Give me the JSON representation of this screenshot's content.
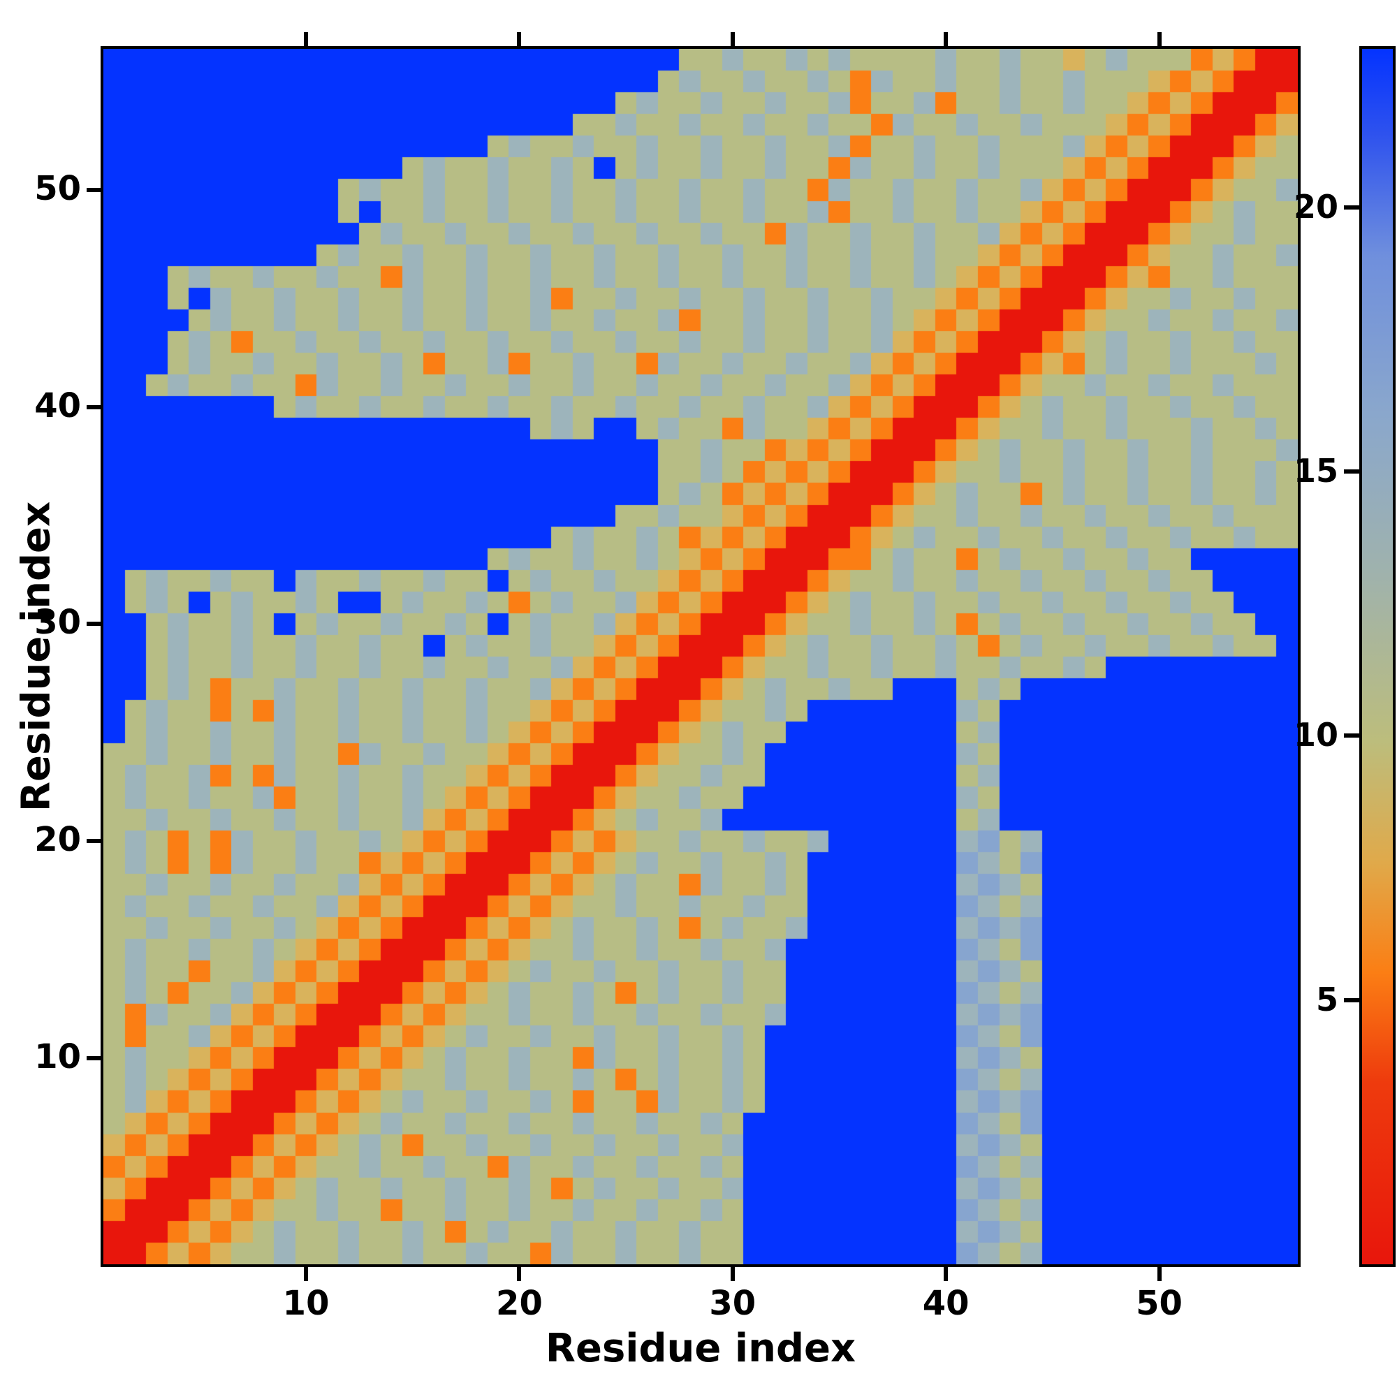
{
  "chart_data": {
    "type": "heatmap",
    "title": "",
    "xlabel": "Residue index",
    "ylabel": "Residue index",
    "n_residues": 56,
    "x_ticks": [
      10,
      20,
      30,
      40,
      50
    ],
    "y_ticks": [
      10,
      20,
      30,
      40,
      50
    ],
    "colorbar": {
      "ticks": [
        5,
        10,
        15,
        20
      ],
      "vmin": 0,
      "vmax": 23,
      "gradient_stops": [
        [
          0.0,
          "#e8160c"
        ],
        [
          0.15,
          "#ee3b0d"
        ],
        [
          0.24,
          "#fb7e14"
        ],
        [
          0.33,
          "#e0a94a"
        ],
        [
          0.43,
          "#bcbd7c"
        ],
        [
          0.57,
          "#9fb2ad"
        ],
        [
          0.7,
          "#8aa7cc"
        ],
        [
          0.83,
          "#6f8fdd"
        ],
        [
          0.93,
          "#2e52ee"
        ],
        [
          1.0,
          "#0433ff"
        ]
      ]
    },
    "encoding_values": {
      "R": 1,
      "O": 5.5,
      "o": 7,
      "t": 8.8,
      "g": 10.5,
      "s": 13.5,
      "S": 16.5,
      "b": 19,
      "B": 23
    },
    "palette": {
      "R": "#e8160c",
      "O": "#fb7e14",
      "o": "#fba03c",
      "t": "#d9b35c",
      "g": "#b7bd85",
      "s": "#9db4bb",
      "S": "#87a5cf",
      "b": "#7d9ad4",
      "B": "#0433ff"
    },
    "row_order": "top_to_bottom_residue_56_to_1",
    "rows_top_to_bottom": [
      "BBBBBBBBBBBBBBBBBBBBBBBBBBBggsggsgsggggsggsggtgsgggOtORR",
      "BBBBBBBBBBBBBBBBBBBBBBBBBBgsggsggsgOsggsggsggsgggtOtORRR",
      "BBBBBBBBBBBBBBBBBBBBBBBBgsggsggsggsOggsOggsggsggtOtORRRO",
      "BBBBBBBBBBBBBBBBBBBBBBggsggsggsggsggOsggsggsgggtOtORRROt",
      "BBBBBBBBBBBBBBBBBBgsggsggsggsggsggsOggsggsgggstOtORRROtg",
      "BBBBBBBBBBBBBBgsggsggsgBgsggsggsggOsggsggsgggtOtORRROtgg",
      "BBBBBBBBBBBgsggsggsggsggsggsggsggOsggsggsggstOtORRROtggs",
      "BBBBBBBBBBBgBggsggsggsggsggsggsggsOggsggsggtOtORRROtgsgg",
      "BBBBBBBBBBBBgsggsggsggsggsggsggOsggsggsggstOtORRROtggsgg",
      "BBBBBBBBBBgsggsggsggsggsggsggsggsggsggsggtOtORRROtggsggs",
      "BBBgsggsggsggOsggsggsggsggsggsggsggsggsgtOtORRROtOggsggg",
      "BBBgBsggsggsggsggsggsOggsggsggsggsggsggtOtORRROtggsggsgg",
      "BBBBgsggsggsggsggsggsggsggsOggsggsggsgtOtORRROtggsggsggs",
      "BBBgsgOggsggsggsggsggsggsggsggsggsggstOtORRROtgsggsggsgg",
      "BBBgsggsggsggsgOggsOggsggOsggsggsggstOtORRROtOgsggsgggsg",
      "BBgsggsggOsggsggsggsggsggsggsggsggstOtORRROtggsggsggsggg",
      "BBBBBBBBgsggsggsggsggsggsggsggsggstOtORRROtgsggsggsggsgg",
      "BBBBBBBBBBBBBBBBBBBBgsgBBgsggOsggtOtORRROtggsggsgggsggsg",
      "BBBBBBBBBBBBBBBBBBBBBBBBBBggsggOtOtORRROtgsggsggsggsgggs",
      "BBBBBBBBBBBBBBBBBBBBBBBBBBggsgOtOtORRROtggsggsggsggsggsg",
      "BBBBBBBBBBBBBBBBBBBBBBBBBBgsgOtOtORRROtgsggOgsggsggsggsg",
      "BBBBBBBBBBBBBBBBBBBBBBBBggsggtOtORRROtggsggsggsggsggsggg",
      "BBBBBBBBBBBBBBBBBBBBBgsggsgOtOtORRROtgsggsggsggsggsggsgg",
      "BBBBBBBBBBBBBBBBBBgsggsggsgtOtORRROOgsggOgsggsggsggBBBBB",
      "BgsggsggBsggsggsggBgsggsggtOtORRROtggsggsggsggsggsggBBBB",
      "BgsgBgsggsgBBgsggsgOgsggstOtORRROtgsggsggsggsggsggsggBBB",
      "BBgsggsgBgsggsggsgBgsggstOtORRROtggsggsgOgsggsggsggsggBB",
      "BBgsggsggsggsggBgsggsggtOtORRROtgsggsggsgOgsggsggsggsggB",
      "BBgsggsggsggsggsggsggstOtORRROtggsggsggsggsggsgBBBBBBBBB",
      "BBgsgOggsggsggsggsggstOtORRROtgsggsggBBBgsgBBBBBBBBBBBBB",
      "BgsggOgOsggsggsggsggtOtORRROtggsgBBBBBBBsgBBBBBBBBBBBBBB",
      "BgsggsggsggsggsggsgtOtORRROtgsggBBBBBBBBgsBBBBBBBBBBBBBB",
      "ggsggsggsggOsggsggtOtORRROtggsgBBBBBBBBBsgBBBBBBBBBBBBBB",
      "gsggsOgOsggsggsggtOtORRROtggsggBBBBBBBBBgsBBBBBBBBBBBBBB",
      "gsggsggsOggsggsgtOtORRROtggsggBBBBBBBBBBsgBBBBBBBBBBBBBB",
      "ggsggsggsggsggstOtORRROtgsggsBBBBBBBBBBBgsBBBBBBBBBBBBBB",
      "gsgOgOsggsggsgtOtORRROtOtggsggsggsBBBBBBsSgsBBBBBBBBBBBB",
      "gsgOgOsggsggOtOtORRROtOtgsggsggsgBBBBBBBSsgSBBBBBBBBBBBB",
      "ggsggsggsggstOtORRROtOtgsggOsggsgBBBBBBBsSsgBBBBBBBBBBBB",
      "gsggsggsggstOtORRROtOtggsggsggsggBBBBBBBSsgsBBBBBBBBBBBB",
      "ggsggsggsgtOtORRROtOtgsggsgOgsggsBBBBBBBsSsSBBBBBBBBBBBB",
      "gsggsggsgtOtORRROtOtggsggsggsggsBBBBBBBBSsgSBBBBBBBBBBBB",
      "gsggOggstOtORRROtOtgsggsggsggsggBBBBBBBBsSsgBBBBBBBBBBBB",
      "gsgOggstOtORRROtOtgsggsgOgsggsggBBBBBBBBSsgsBBBBBBBBBBBB",
      "gOsggstOtORRROtOtggsggsggsggsggsBBBBBBBBsSsSBBBBBBBBBBBB",
      "gOggstOtORRROtOtgsggsggsggsggsgBBBBBBBBBSsgSBBBBBBBBBBBB",
      "gsggtOtORRROtOtgsggsggOsggsggsgBBBBBBBBBsSsgBBBBBBBBBBBB",
      "gsgtOtORRROtOtggsggsggsgOgsggsgBBBBBBBBBSsgsBBBBBBBBBBBB",
      "gstOtORRROtOtgsggsggsgOggOsggsgBBBBBBBBBsSsSBBBBBBBBBBBB",
      "gtOtORRROtOtgsggsggsggsggsggsgBBBBBBBBBBSsgSBBBBBBBBBBBB",
      "tOtORRROtOtgsgOggsggsggsggsggsBBBBBBBBBBsSsgBBBBBBBBBBBB",
      "OtORRROtOtggsggsggOsggsggsggsgBBBBBBBBBBSsgsBBBBBBBBBBBB",
      "tORRROtOtgsggsggsggsgOgsggsggsBBBBBBBBBBsSsgBBBBBBBBBBBB",
      "ORRROtOtggsggOggsggsggsggsggsgBBBBBBBBBBSsgsBBBBBBBBBBBB",
      "RRROtOtgsggsggsgOgsggsggsggsggBBBBBBBBBBsSsgBBBBBBBBBBBB",
      "RROtOtggsggsggsggsggOsggsggsggBBBBBBBBBBSsgsBBBBBBBBBBBB"
    ]
  }
}
